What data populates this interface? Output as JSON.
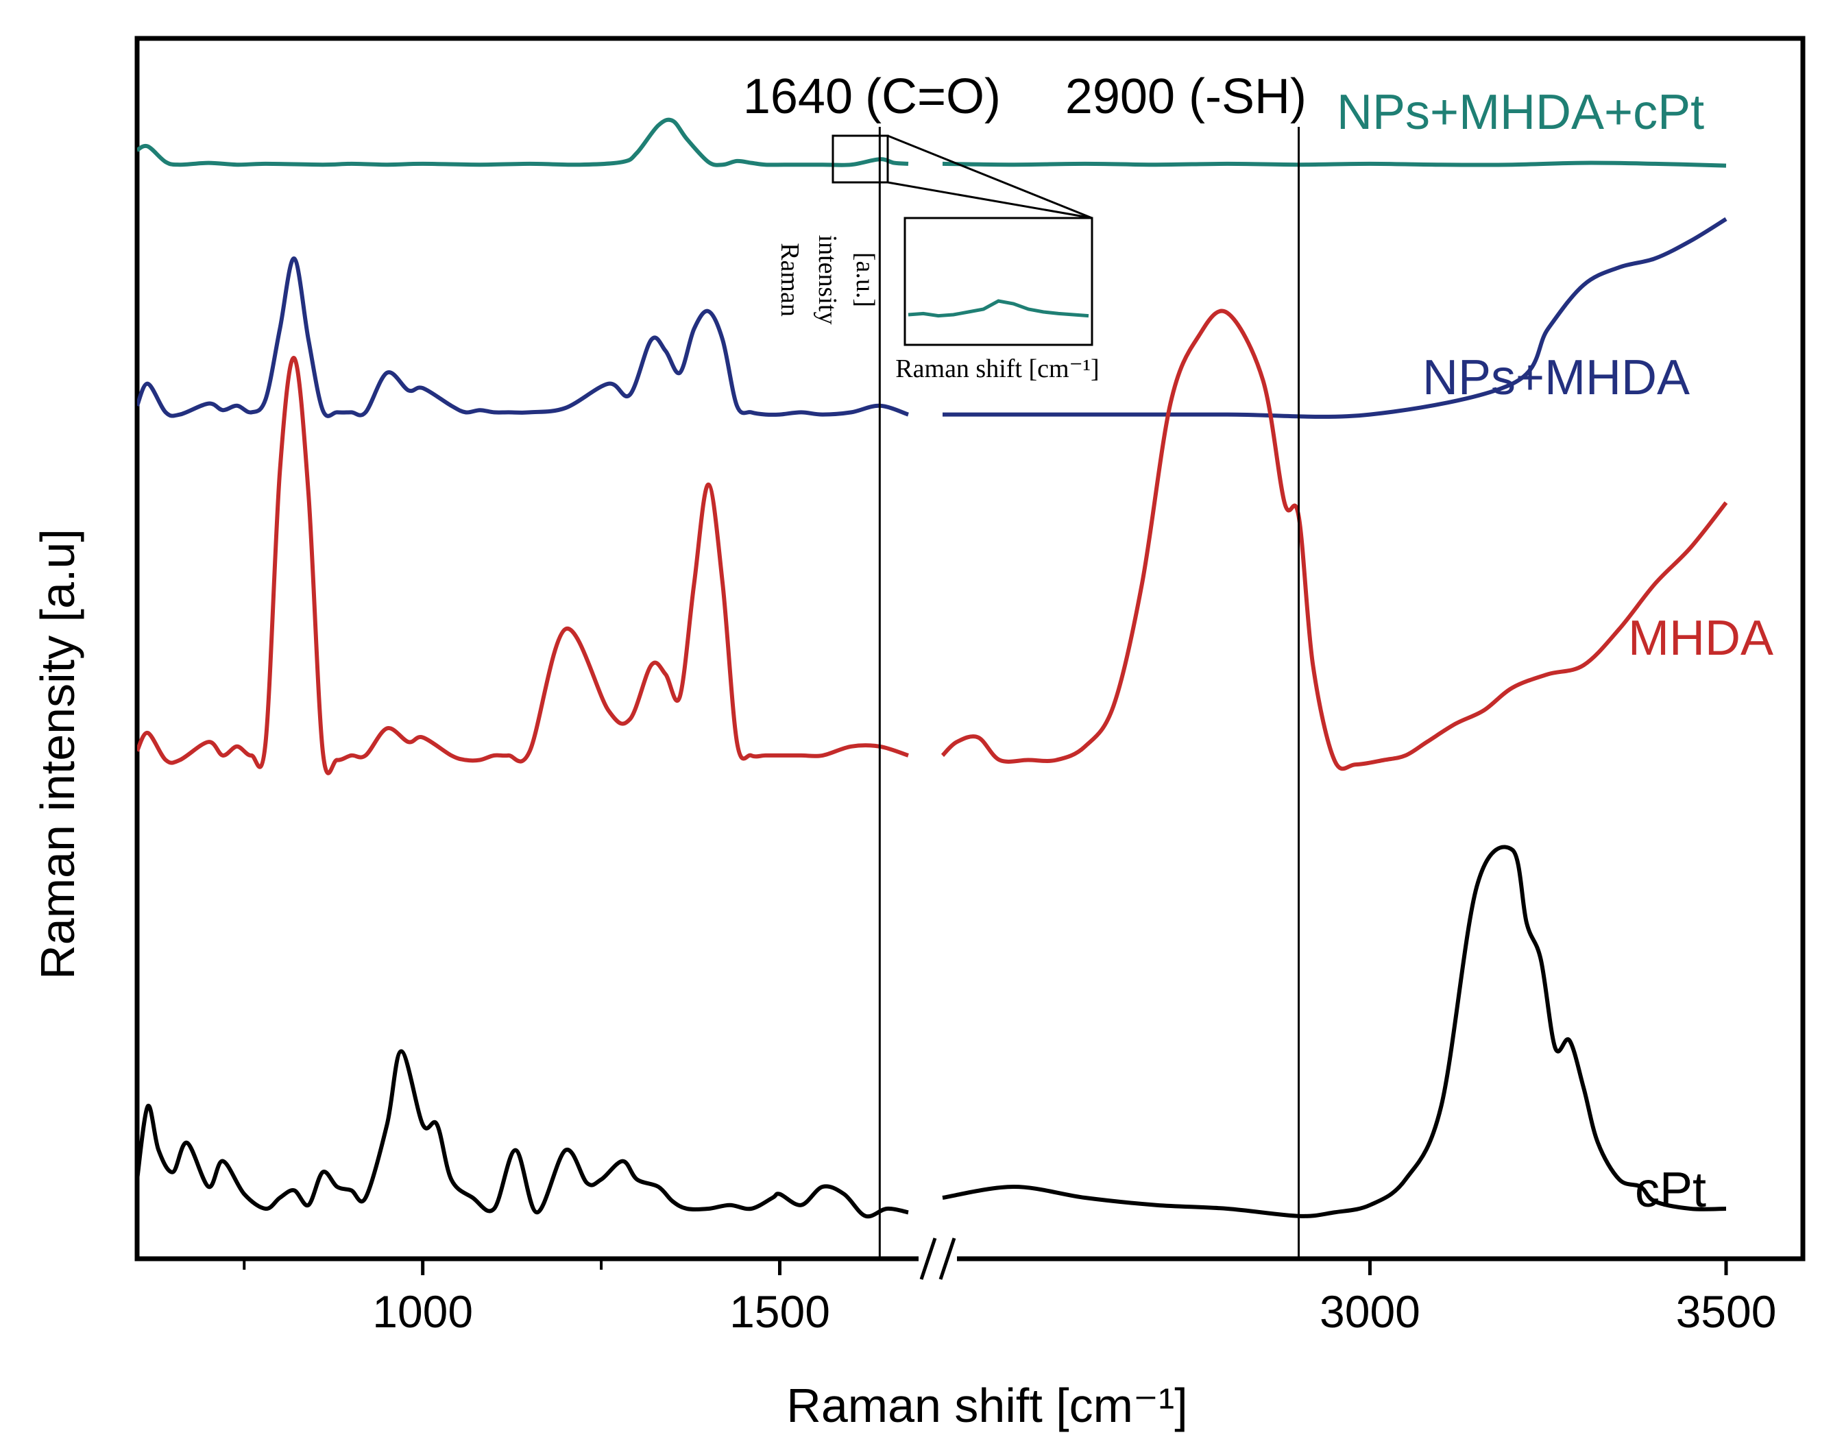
{
  "chart_data": {
    "type": "line",
    "xlabel": "Raman shift [cm-1]",
    "ylabel": "Raman intensity [a.u]",
    "xlim": [
      600,
      3550
    ],
    "axis_break": [
      1680,
      2400
    ],
    "x_ticks": [
      {
        "value": 1000,
        "label": "1000"
      },
      {
        "value": 1500,
        "label": "1500"
      },
      {
        "value": 3000,
        "label": "3000"
      },
      {
        "value": 3500,
        "label": "3500"
      }
    ],
    "minor_ticks": [
      750,
      1250
    ],
    "markers": [
      {
        "value": 1640,
        "number": "1640",
        "group": "(C=O)"
      },
      {
        "value": 2900,
        "number": "2900",
        "group": "(-SH)"
      }
    ],
    "series": [
      {
        "name": "NPs+MHDA+cPt",
        "color": "#1f7f74",
        "offset": 0.895,
        "scale": 0.075,
        "x": [
          600,
          615,
          640,
          660,
          700,
          740,
          780,
          860,
          900,
          950,
          1000,
          1080,
          1150,
          1220,
          1280,
          1300,
          1330,
          1350,
          1370,
          1400,
          1420,
          1440,
          1460,
          1480,
          1510,
          1560,
          1600,
          1640,
          1660,
          1680,
          2400,
          2500,
          2600,
          2700,
          2800,
          2900,
          3000,
          3100,
          3200,
          3300,
          3400,
          3500
        ],
        "y": [
          0.18,
          0.22,
          0.05,
          0.02,
          0.04,
          0.02,
          0.03,
          0.02,
          0.03,
          0.02,
          0.03,
          0.02,
          0.03,
          0.02,
          0.05,
          0.15,
          0.45,
          0.5,
          0.3,
          0.05,
          0.02,
          0.06,
          0.04,
          0.02,
          0.02,
          0.02,
          0.02,
          0.08,
          0.04,
          0.03,
          0.03,
          0.02,
          0.03,
          0.02,
          0.03,
          0.02,
          0.03,
          0.02,
          0.02,
          0.04,
          0.03,
          0.01
        ]
      },
      {
        "name": "NPs+MHDA",
        "color": "#23307f",
        "offset": 0.69,
        "scale": 0.18,
        "x": [
          600,
          615,
          640,
          660,
          700,
          720,
          740,
          760,
          780,
          800,
          820,
          840,
          860,
          880,
          900,
          920,
          950,
          980,
          1000,
          1040,
          1060,
          1080,
          1100,
          1120,
          1150,
          1200,
          1260,
          1290,
          1320,
          1340,
          1360,
          1380,
          1400,
          1420,
          1440,
          1460,
          1480,
          1500,
          1530,
          1560,
          1600,
          1640,
          1680,
          2400,
          2600,
          2800,
          3000,
          3200,
          3250,
          3300,
          3350,
          3400,
          3450,
          3500
        ],
        "y": [
          0.05,
          0.15,
          0.02,
          0.01,
          0.06,
          0.03,
          0.05,
          0.02,
          0.08,
          0.4,
          0.72,
          0.35,
          0.03,
          0.02,
          0.02,
          0.02,
          0.2,
          0.12,
          0.13,
          0.05,
          0.02,
          0.03,
          0.02,
          0.02,
          0.02,
          0.04,
          0.15,
          0.1,
          0.35,
          0.3,
          0.2,
          0.4,
          0.48,
          0.35,
          0.05,
          0.02,
          0.01,
          0.01,
          0.02,
          0.01,
          0.02,
          0.05,
          0.01,
          0.01,
          0.01,
          0.01,
          0.01,
          0.15,
          0.4,
          0.6,
          0.68,
          0.72,
          0.8,
          0.9
        ]
      },
      {
        "name": "MHDA",
        "color": "#c42b2a",
        "offset": 0.405,
        "scale": 0.37,
        "x": [
          600,
          615,
          640,
          660,
          700,
          720,
          740,
          760,
          780,
          800,
          820,
          840,
          860,
          880,
          900,
          920,
          950,
          980,
          1000,
          1040,
          1060,
          1080,
          1100,
          1120,
          1150,
          1200,
          1260,
          1290,
          1320,
          1340,
          1360,
          1380,
          1400,
          1420,
          1440,
          1460,
          1480,
          1500,
          1530,
          1560,
          1600,
          1640,
          1680,
          2400,
          2420,
          2450,
          2480,
          2520,
          2560,
          2600,
          2640,
          2680,
          2720,
          2760,
          2800,
          2850,
          2880,
          2900,
          2920,
          2950,
          2980,
          3020,
          3050,
          3080,
          3120,
          3160,
          3200,
          3250,
          3300,
          3350,
          3400,
          3450,
          3500
        ],
        "y": [
          0.03,
          0.07,
          0.01,
          0.01,
          0.05,
          0.02,
          0.04,
          0.02,
          0.05,
          0.65,
          0.9,
          0.6,
          0.03,
          0.01,
          0.02,
          0.02,
          0.08,
          0.05,
          0.06,
          0.02,
          0.01,
          0.01,
          0.02,
          0.02,
          0.03,
          0.3,
          0.12,
          0.1,
          0.22,
          0.2,
          0.15,
          0.4,
          0.62,
          0.4,
          0.05,
          0.02,
          0.02,
          0.02,
          0.02,
          0.02,
          0.04,
          0.04,
          0.02,
          0.02,
          0.05,
          0.06,
          0.01,
          0.01,
          0.01,
          0.04,
          0.13,
          0.4,
          0.8,
          0.95,
          1.0,
          0.85,
          0.58,
          0.55,
          0.22,
          0.01,
          0.0,
          0.01,
          0.02,
          0.05,
          0.09,
          0.12,
          0.17,
          0.2,
          0.22,
          0.3,
          0.4,
          0.48,
          0.58
        ]
      },
      {
        "name": "cPt",
        "color": "#000000",
        "offset": 0.035,
        "scale": 0.3,
        "x": [
          600,
          615,
          630,
          650,
          670,
          700,
          720,
          750,
          780,
          800,
          820,
          840,
          860,
          880,
          900,
          920,
          950,
          970,
          1000,
          1020,
          1040,
          1070,
          1100,
          1130,
          1160,
          1200,
          1230,
          1250,
          1280,
          1300,
          1330,
          1350,
          1370,
          1400,
          1430,
          1460,
          1490,
          1500,
          1530,
          1560,
          1590,
          1620,
          1650,
          1680,
          2400,
          2500,
          2600,
          2700,
          2800,
          2900,
          2950,
          3000,
          3050,
          3100,
          3150,
          3200,
          3220,
          3240,
          3260,
          3280,
          3300,
          3320,
          3350,
          3380,
          3400,
          3450,
          3500
        ],
        "y": [
          0.1,
          0.3,
          0.18,
          0.12,
          0.2,
          0.08,
          0.15,
          0.06,
          0.02,
          0.05,
          0.07,
          0.03,
          0.12,
          0.08,
          0.07,
          0.05,
          0.25,
          0.45,
          0.25,
          0.25,
          0.1,
          0.05,
          0.02,
          0.18,
          0.01,
          0.18,
          0.09,
          0.1,
          0.15,
          0.1,
          0.08,
          0.04,
          0.02,
          0.02,
          0.03,
          0.02,
          0.05,
          0.06,
          0.03,
          0.08,
          0.06,
          0.0,
          0.02,
          0.01,
          0.05,
          0.08,
          0.05,
          0.03,
          0.02,
          0.0,
          0.01,
          0.03,
          0.1,
          0.3,
          0.9,
          1.0,
          0.8,
          0.7,
          0.46,
          0.48,
          0.35,
          0.2,
          0.1,
          0.08,
          0.04,
          0.02,
          0.02
        ]
      }
    ],
    "inset": {
      "xlabel": "Raman shift [cm-1]",
      "ylabel_line1": "Raman",
      "ylabel_line2": "intensity",
      "ylabel_line3": "[a.u.]",
      "series_name": "NPs+MHDA+cPt",
      "y": [
        0.2,
        0.22,
        0.18,
        0.2,
        0.25,
        0.3,
        0.45,
        0.4,
        0.3,
        0.25,
        0.22,
        0.2,
        0.18
      ]
    }
  }
}
